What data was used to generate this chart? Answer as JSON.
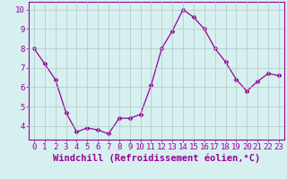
{
  "x": [
    0,
    1,
    2,
    3,
    4,
    5,
    6,
    7,
    8,
    9,
    10,
    11,
    12,
    13,
    14,
    15,
    16,
    17,
    18,
    19,
    20,
    21,
    22,
    23
  ],
  "y": [
    8.0,
    7.2,
    6.4,
    4.7,
    3.7,
    3.9,
    3.8,
    3.6,
    4.4,
    4.4,
    4.6,
    6.1,
    8.0,
    8.9,
    10.0,
    9.6,
    9.0,
    8.0,
    7.3,
    6.4,
    5.8,
    6.3,
    6.7,
    6.6
  ],
  "line_color": "#990099",
  "marker": "D",
  "marker_size": 2.5,
  "bg_color": "#d6f0ef",
  "grid_color": "#b0c8c8",
  "xlabel": "Windchill (Refroidissement éolien,°C)",
  "xlabel_fontsize": 7.5,
  "ylabel_ticks": [
    4,
    5,
    6,
    7,
    8,
    9,
    10
  ],
  "xlim": [
    -0.5,
    23.5
  ],
  "ylim": [
    3.3,
    10.4
  ],
  "tick_fontsize": 6.5,
  "figure_bg": "#d6f0ef"
}
